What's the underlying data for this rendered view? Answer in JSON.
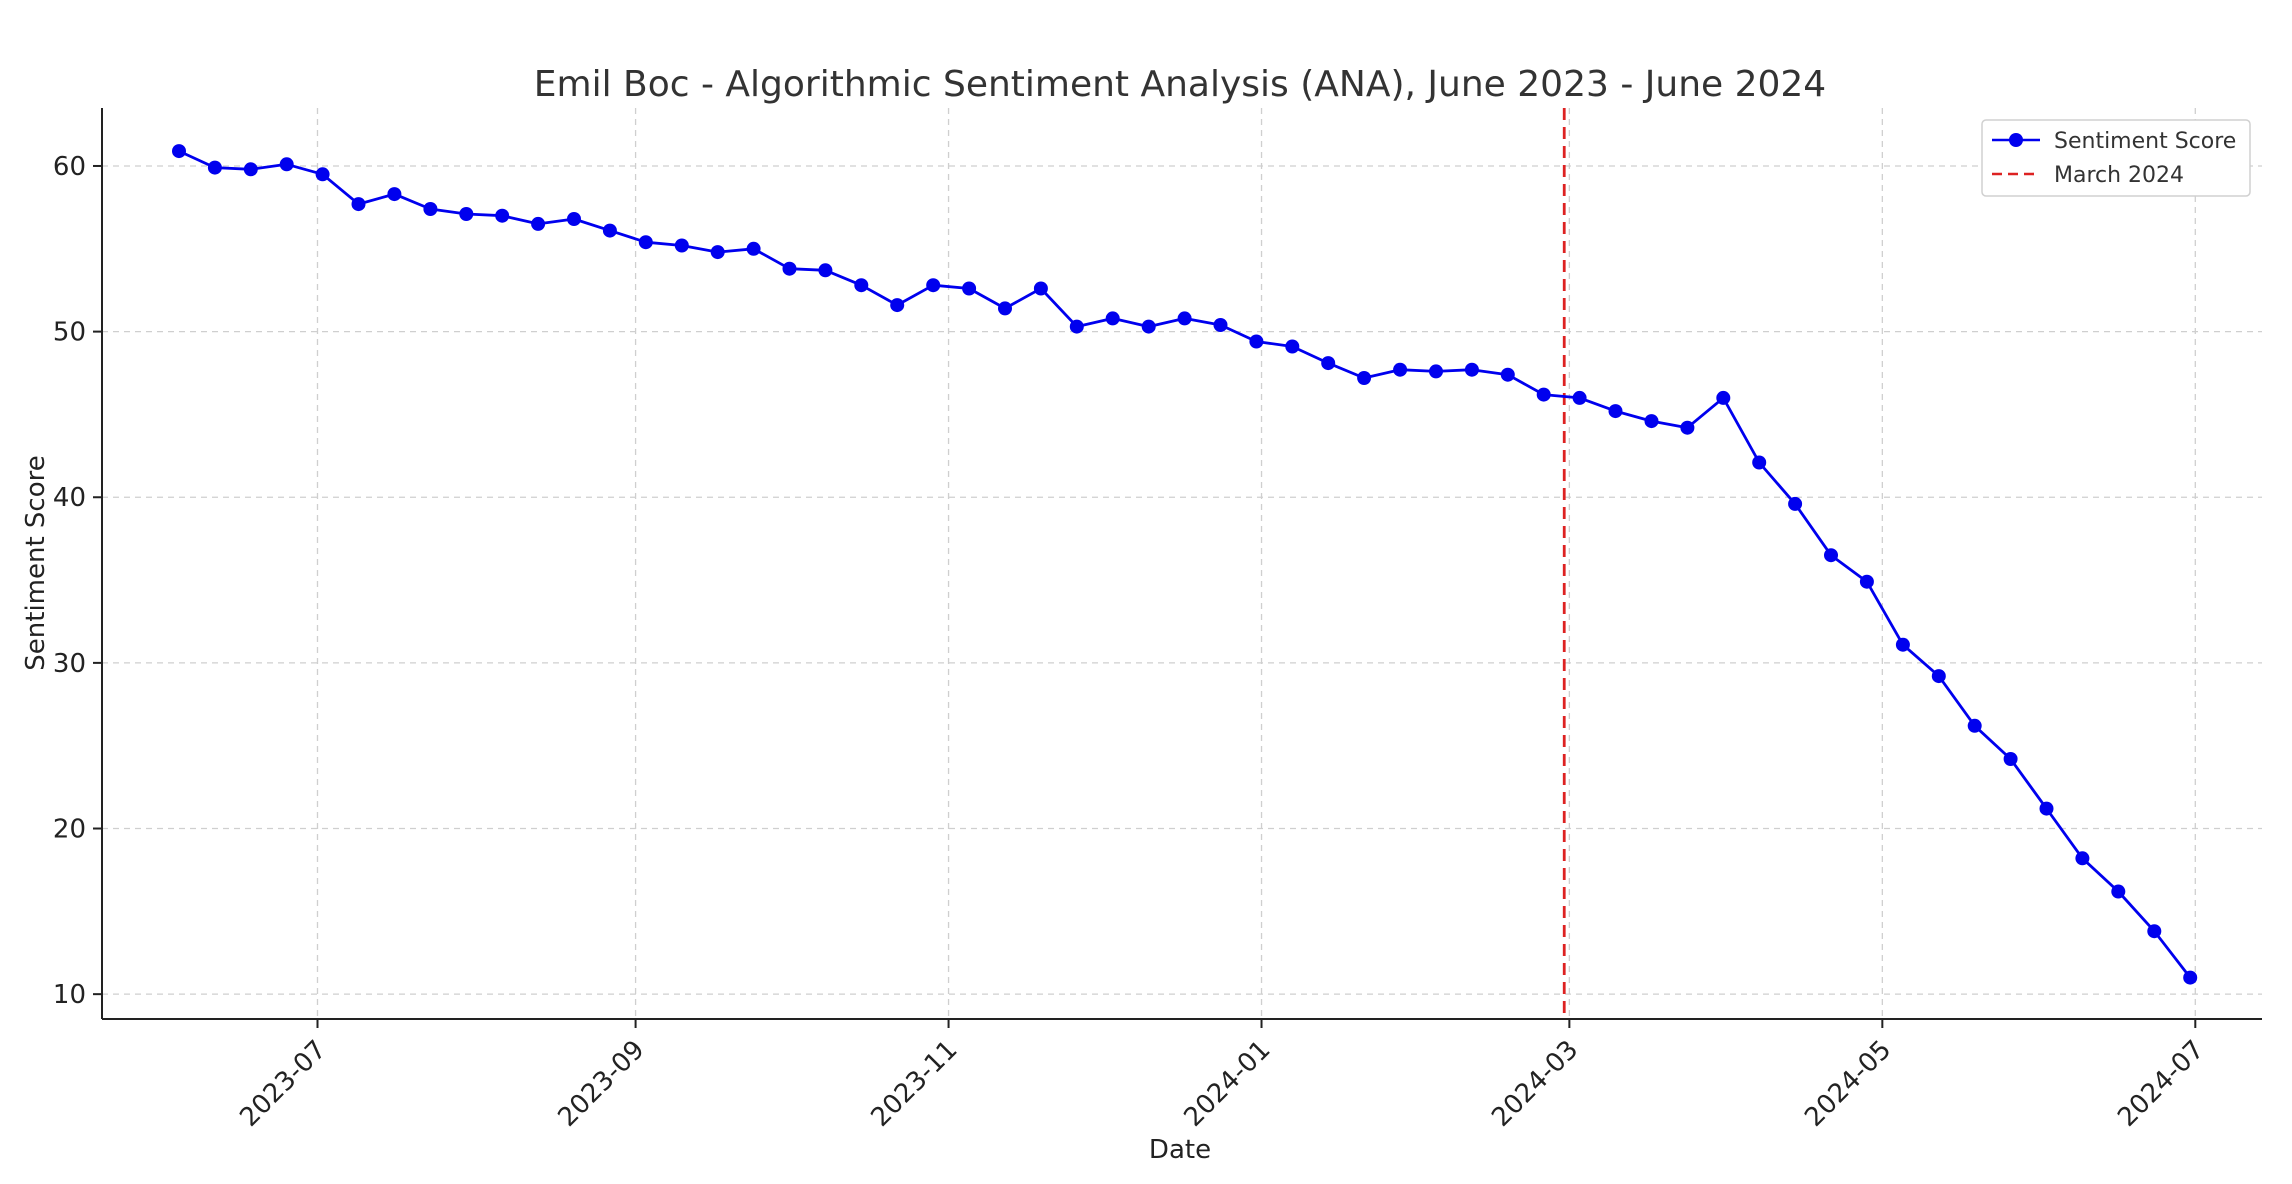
{
  "chart_data": {
    "type": "line",
    "title": "Emil Boc - Algorithmic Sentiment Analysis (ANA), June 2023 - June 2024",
    "xlabel": "Date",
    "ylabel": "Sentiment Score",
    "ylim": [
      8.5,
      63.5
    ],
    "xlim": [
      "2023-05-20",
      "2024-07-14"
    ],
    "yticks": [
      10,
      20,
      30,
      40,
      50,
      60
    ],
    "xticks": [
      "2023-07",
      "2023-09",
      "2023-11",
      "2024-01",
      "2024-03",
      "2024-05",
      "2024-07"
    ],
    "xtick_dates": [
      "2023-07-01",
      "2023-09-01",
      "2023-11-01",
      "2024-01-01",
      "2024-03-01",
      "2024-05-01",
      "2024-07-01"
    ],
    "grid": true,
    "legend_position": "top-right",
    "series": [
      {
        "name": "Sentiment Score",
        "color": "#0000ee",
        "marker": "circle",
        "start_date": "2023-06-04",
        "interval_days": 7,
        "values": [
          60.9,
          59.9,
          59.8,
          60.1,
          59.5,
          57.7,
          58.3,
          57.4,
          57.1,
          57.0,
          56.5,
          56.8,
          56.1,
          55.4,
          55.2,
          54.8,
          55.0,
          53.8,
          53.7,
          52.8,
          51.6,
          52.8,
          52.6,
          51.4,
          52.6,
          50.3,
          50.8,
          50.3,
          50.8,
          50.4,
          49.4,
          49.1,
          48.1,
          47.2,
          47.7,
          47.6,
          47.7,
          47.4,
          46.2,
          46.0,
          45.2,
          44.6,
          44.2,
          46.0,
          42.1,
          39.6,
          36.5,
          34.9,
          31.1,
          29.2,
          26.2,
          24.2,
          21.2,
          18.2,
          16.2,
          13.8,
          11.0
        ]
      }
    ],
    "reference_line": {
      "name": "March 2024",
      "date": "2024-02-29",
      "color": "#dd2222",
      "style": "dashed"
    }
  }
}
